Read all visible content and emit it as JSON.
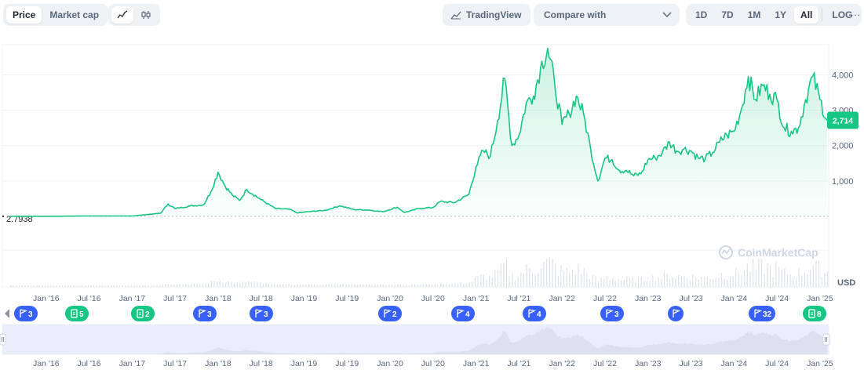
{
  "toolbar": {
    "type_tabs": [
      "Price",
      "Market cap"
    ],
    "tradingview_label": "TradingView",
    "compare_label": "Compare with",
    "ranges": [
      "1D",
      "7D",
      "1M",
      "1Y",
      "All",
      "LOG"
    ],
    "more_label": "···"
  },
  "chart_data": {
    "type": "area",
    "color": "#16c784",
    "currency": "USD",
    "start_label": "2.7938",
    "last_price_label": "2,714",
    "y_ticks": [
      1000,
      2000,
      3000,
      4000
    ],
    "y_tick_labels": [
      "1,000",
      "2,000",
      "3,000",
      "4,000"
    ],
    "ylim": [
      0,
      4850
    ],
    "x_tick_labels": [
      "Jan '16",
      "Jul '16",
      "Jan '17",
      "Jul '17",
      "Jan '18",
      "Jul '18",
      "Jan '19",
      "Jul '19",
      "Jan '20",
      "Jul '20",
      "Jan '21",
      "Jul '21",
      "Jan '22",
      "Jul '22",
      "Jan '23",
      "Jul '23",
      "Jan '24",
      "Jul '24",
      "Jan '25"
    ],
    "series": [
      {
        "values": [
          {
            "x": "2015-08",
            "y": 3
          },
          {
            "x": "2016-01",
            "y": 1
          },
          {
            "x": "2016-07",
            "y": 12
          },
          {
            "x": "2017-01",
            "y": 10
          },
          {
            "x": "2017-03",
            "y": 50
          },
          {
            "x": "2017-05",
            "y": 90
          },
          {
            "x": "2017-06",
            "y": 350
          },
          {
            "x": "2017-07",
            "y": 220
          },
          {
            "x": "2017-09",
            "y": 290
          },
          {
            "x": "2017-11",
            "y": 330
          },
          {
            "x": "2017-12",
            "y": 700
          },
          {
            "x": "2018-01",
            "y": 1250
          },
          {
            "x": "2018-02",
            "y": 850
          },
          {
            "x": "2018-03",
            "y": 600
          },
          {
            "x": "2018-04",
            "y": 450
          },
          {
            "x": "2018-05",
            "y": 760
          },
          {
            "x": "2018-07",
            "y": 470
          },
          {
            "x": "2018-09",
            "y": 220
          },
          {
            "x": "2018-11",
            "y": 200
          },
          {
            "x": "2018-12",
            "y": 100
          },
          {
            "x": "2019-02",
            "y": 140
          },
          {
            "x": "2019-04",
            "y": 170
          },
          {
            "x": "2019-06",
            "y": 300
          },
          {
            "x": "2019-08",
            "y": 190
          },
          {
            "x": "2019-10",
            "y": 180
          },
          {
            "x": "2019-12",
            "y": 130
          },
          {
            "x": "2020-02",
            "y": 260
          },
          {
            "x": "2020-03",
            "y": 110
          },
          {
            "x": "2020-05",
            "y": 220
          },
          {
            "x": "2020-07",
            "y": 250
          },
          {
            "x": "2020-08",
            "y": 420
          },
          {
            "x": "2020-10",
            "y": 390
          },
          {
            "x": "2020-12",
            "y": 620
          },
          {
            "x": "2021-01",
            "y": 1400
          },
          {
            "x": "2021-02",
            "y": 1850
          },
          {
            "x": "2021-03",
            "y": 1700
          },
          {
            "x": "2021-04",
            "y": 2700
          },
          {
            "x": "2021-05",
            "y": 3900
          },
          {
            "x": "2021-06",
            "y": 2000
          },
          {
            "x": "2021-07",
            "y": 2300
          },
          {
            "x": "2021-08",
            "y": 3200
          },
          {
            "x": "2021-09",
            "y": 3400
          },
          {
            "x": "2021-10",
            "y": 4200
          },
          {
            "x": "2021-11",
            "y": 4750
          },
          {
            "x": "2021-12",
            "y": 3700
          },
          {
            "x": "2022-01",
            "y": 2600
          },
          {
            "x": "2022-02",
            "y": 2900
          },
          {
            "x": "2022-03",
            "y": 3400
          },
          {
            "x": "2022-04",
            "y": 2900
          },
          {
            "x": "2022-05",
            "y": 1900
          },
          {
            "x": "2022-06",
            "y": 1000
          },
          {
            "x": "2022-07",
            "y": 1650
          },
          {
            "x": "2022-08",
            "y": 1600
          },
          {
            "x": "2022-09",
            "y": 1300
          },
          {
            "x": "2022-10",
            "y": 1300
          },
          {
            "x": "2022-11",
            "y": 1150
          },
          {
            "x": "2022-12",
            "y": 1200
          },
          {
            "x": "2023-01",
            "y": 1600
          },
          {
            "x": "2023-02",
            "y": 1650
          },
          {
            "x": "2023-03",
            "y": 1800
          },
          {
            "x": "2023-04",
            "y": 2100
          },
          {
            "x": "2023-05",
            "y": 1850
          },
          {
            "x": "2023-06",
            "y": 1900
          },
          {
            "x": "2023-07",
            "y": 1850
          },
          {
            "x": "2023-08",
            "y": 1650
          },
          {
            "x": "2023-09",
            "y": 1630
          },
          {
            "x": "2023-10",
            "y": 1800
          },
          {
            "x": "2023-11",
            "y": 2100
          },
          {
            "x": "2023-12",
            "y": 2300
          },
          {
            "x": "2024-01",
            "y": 2400
          },
          {
            "x": "2024-02",
            "y": 3000
          },
          {
            "x": "2024-03",
            "y": 3950
          },
          {
            "x": "2024-04",
            "y": 3300
          },
          {
            "x": "2024-05",
            "y": 3700
          },
          {
            "x": "2024-06",
            "y": 3450
          },
          {
            "x": "2024-07",
            "y": 3300
          },
          {
            "x": "2024-08",
            "y": 2500
          },
          {
            "x": "2024-09",
            "y": 2400
          },
          {
            "x": "2024-10",
            "y": 2500
          },
          {
            "x": "2024-11",
            "y": 3300
          },
          {
            "x": "2024-12",
            "y": 3950
          },
          {
            "x": "2025-01",
            "y": 3300
          },
          {
            "x": "2025-02",
            "y": 2714
          }
        ]
      }
    ],
    "events": [
      {
        "label": "3",
        "kind": "flag"
      },
      {
        "label": "5",
        "kind": "doc"
      },
      {
        "label": "2",
        "kind": "doc"
      },
      {
        "label": "3",
        "kind": "flag"
      },
      {
        "label": "3",
        "kind": "flag"
      },
      {
        "label": "2",
        "kind": "flag"
      },
      {
        "label": "4",
        "kind": "flag"
      },
      {
        "label": "4",
        "kind": "flag"
      },
      {
        "label": "3",
        "kind": "flag"
      },
      {
        "label": "",
        "kind": "flag"
      },
      {
        "label": "32",
        "kind": "flag"
      },
      {
        "label": "8",
        "kind": "doc"
      }
    ]
  },
  "watermark": "CoinMarketCap",
  "colors": {
    "accent": "#16c784",
    "event_flag": "#3861fb",
    "event_doc": "#16c784",
    "navigator_fill": "#e6eafc"
  }
}
